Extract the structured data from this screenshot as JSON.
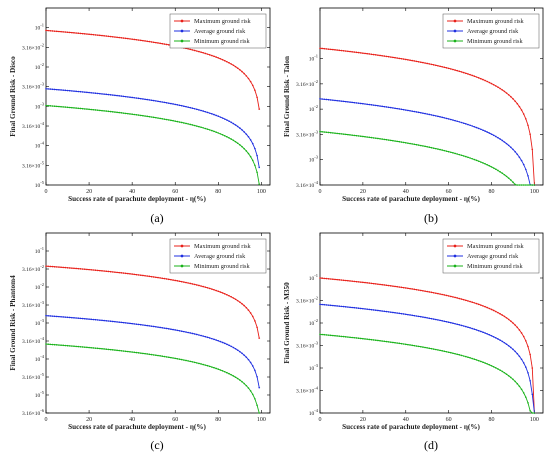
{
  "colors": {
    "max": "#e8201a",
    "avg": "#1f2fe0",
    "min": "#19b21a",
    "axis": "#000000"
  },
  "chart_data": [
    {
      "type": "line",
      "panel_label": "(a)",
      "ylabel": "Final Ground Risk - Disco",
      "xlabel": "Success rate of parachute deployment - η(%)",
      "xlim": [
        0,
        104
      ],
      "xticks": [
        0,
        20,
        40,
        60,
        80,
        100
      ],
      "ylog": true,
      "ylim": [
        1e-05,
        0.3162
      ],
      "ytick_labels": [
        "10^-1",
        "3.16×10^-2",
        "10^-2",
        "3.16×10^-3",
        "10^-3",
        "3.16×10^-4",
        "10^-4",
        "3.16×10^-5",
        "10^-5"
      ],
      "ytick_values": [
        0.1,
        0.0316,
        0.01,
        0.00316,
        0.001,
        0.000316,
        0.0001,
        3.16e-05,
        1e-05
      ],
      "legend_position": "top-right",
      "series": [
        {
          "name": "Maximum ground risk",
          "key": "max",
          "base": 0.085,
          "x_end": 99
        },
        {
          "name": "Average ground risk",
          "key": "avg",
          "base": 0.0028,
          "x_end": 99
        },
        {
          "name": "Minimum ground risk",
          "key": "min",
          "base": 0.00105,
          "x_end": 99
        }
      ]
    },
    {
      "type": "line",
      "panel_label": "(b)",
      "ylabel": "Final Ground Risk - Talon",
      "xlabel": "Success rate of parachute deployment - η(%)",
      "xlim": [
        0,
        104
      ],
      "xticks": [
        0,
        20,
        40,
        60,
        80,
        100
      ],
      "ylog": true,
      "ylim": [
        0.000316,
        1.0
      ],
      "ytick_labels": [
        "10^-1",
        "3.16×10^-2",
        "10^-2",
        "3.16×10^-3",
        "10^-3",
        "3.16×10^-4"
      ],
      "ytick_values": [
        0.1,
        0.0316,
        0.01,
        0.00316,
        0.001,
        0.000316
      ],
      "legend_position": "top-right",
      "series": [
        {
          "name": "Maximum ground risk",
          "key": "max",
          "base": 0.16,
          "x_end": 100
        },
        {
          "name": "Average ground risk",
          "key": "avg",
          "base": 0.016,
          "x_end": 100
        },
        {
          "name": "Minimum ground risk",
          "key": "min",
          "base": 0.0036,
          "x_end": 100
        }
      ]
    },
    {
      "type": "line",
      "panel_label": "(c)",
      "ylabel": "Final Ground Risk - Phantom4",
      "xlabel": "Success rate of parachute deployment - η(%)",
      "xlim": [
        0,
        104
      ],
      "xticks": [
        0,
        20,
        40,
        60,
        80,
        100
      ],
      "ylog": true,
      "ylim": [
        3.16e-06,
        0.3162
      ],
      "ytick_labels": [
        "10^-1",
        "3.16×10^-2",
        "10^-2",
        "3.16×10^-3",
        "10^-3",
        "3.16×10^-4",
        "10^-4",
        "3.16×10^-5",
        "10^-5",
        "3.16×10^-6"
      ],
      "ytick_values": [
        0.1,
        0.0316,
        0.01,
        0.00316,
        0.001,
        0.000316,
        0.0001,
        3.16e-05,
        1e-05,
        3.16e-06
      ],
      "legend_position": "top-right",
      "series": [
        {
          "name": "Maximum ground risk",
          "key": "max",
          "base": 0.038,
          "x_end": 99
        },
        {
          "name": "Average ground risk",
          "key": "avg",
          "base": 0.0016,
          "x_end": 99
        },
        {
          "name": "Minimum ground risk",
          "key": "min",
          "base": 0.00026,
          "x_end": 99
        }
      ]
    },
    {
      "type": "line",
      "panel_label": "(d)",
      "ylabel": "Final Ground Risk - M350",
      "xlabel": "Success rate of parachute deployment - η(%)",
      "xlim": [
        0,
        104
      ],
      "xticks": [
        0,
        20,
        40,
        60,
        80,
        100
      ],
      "ylog": true,
      "ylim": [
        0.0001,
        1.0
      ],
      "ytick_labels": [
        "10^-1",
        "3.16×10^-2",
        "10^-2",
        "3.16×10^-3",
        "10^-3",
        "3.16×10^-4",
        "10^-4"
      ],
      "ytick_values": [
        0.1,
        0.0316,
        0.01,
        0.00316,
        0.001,
        0.000316,
        0.0001
      ],
      "legend_position": "top-right",
      "series": [
        {
          "name": "Maximum ground risk",
          "key": "max",
          "base": 0.1,
          "x_end": 100
        },
        {
          "name": "Average ground risk",
          "key": "avg",
          "base": 0.026,
          "x_end": 100
        },
        {
          "name": "Minimum ground risk",
          "key": "min",
          "base": 0.0056,
          "x_end": 100
        }
      ]
    }
  ]
}
